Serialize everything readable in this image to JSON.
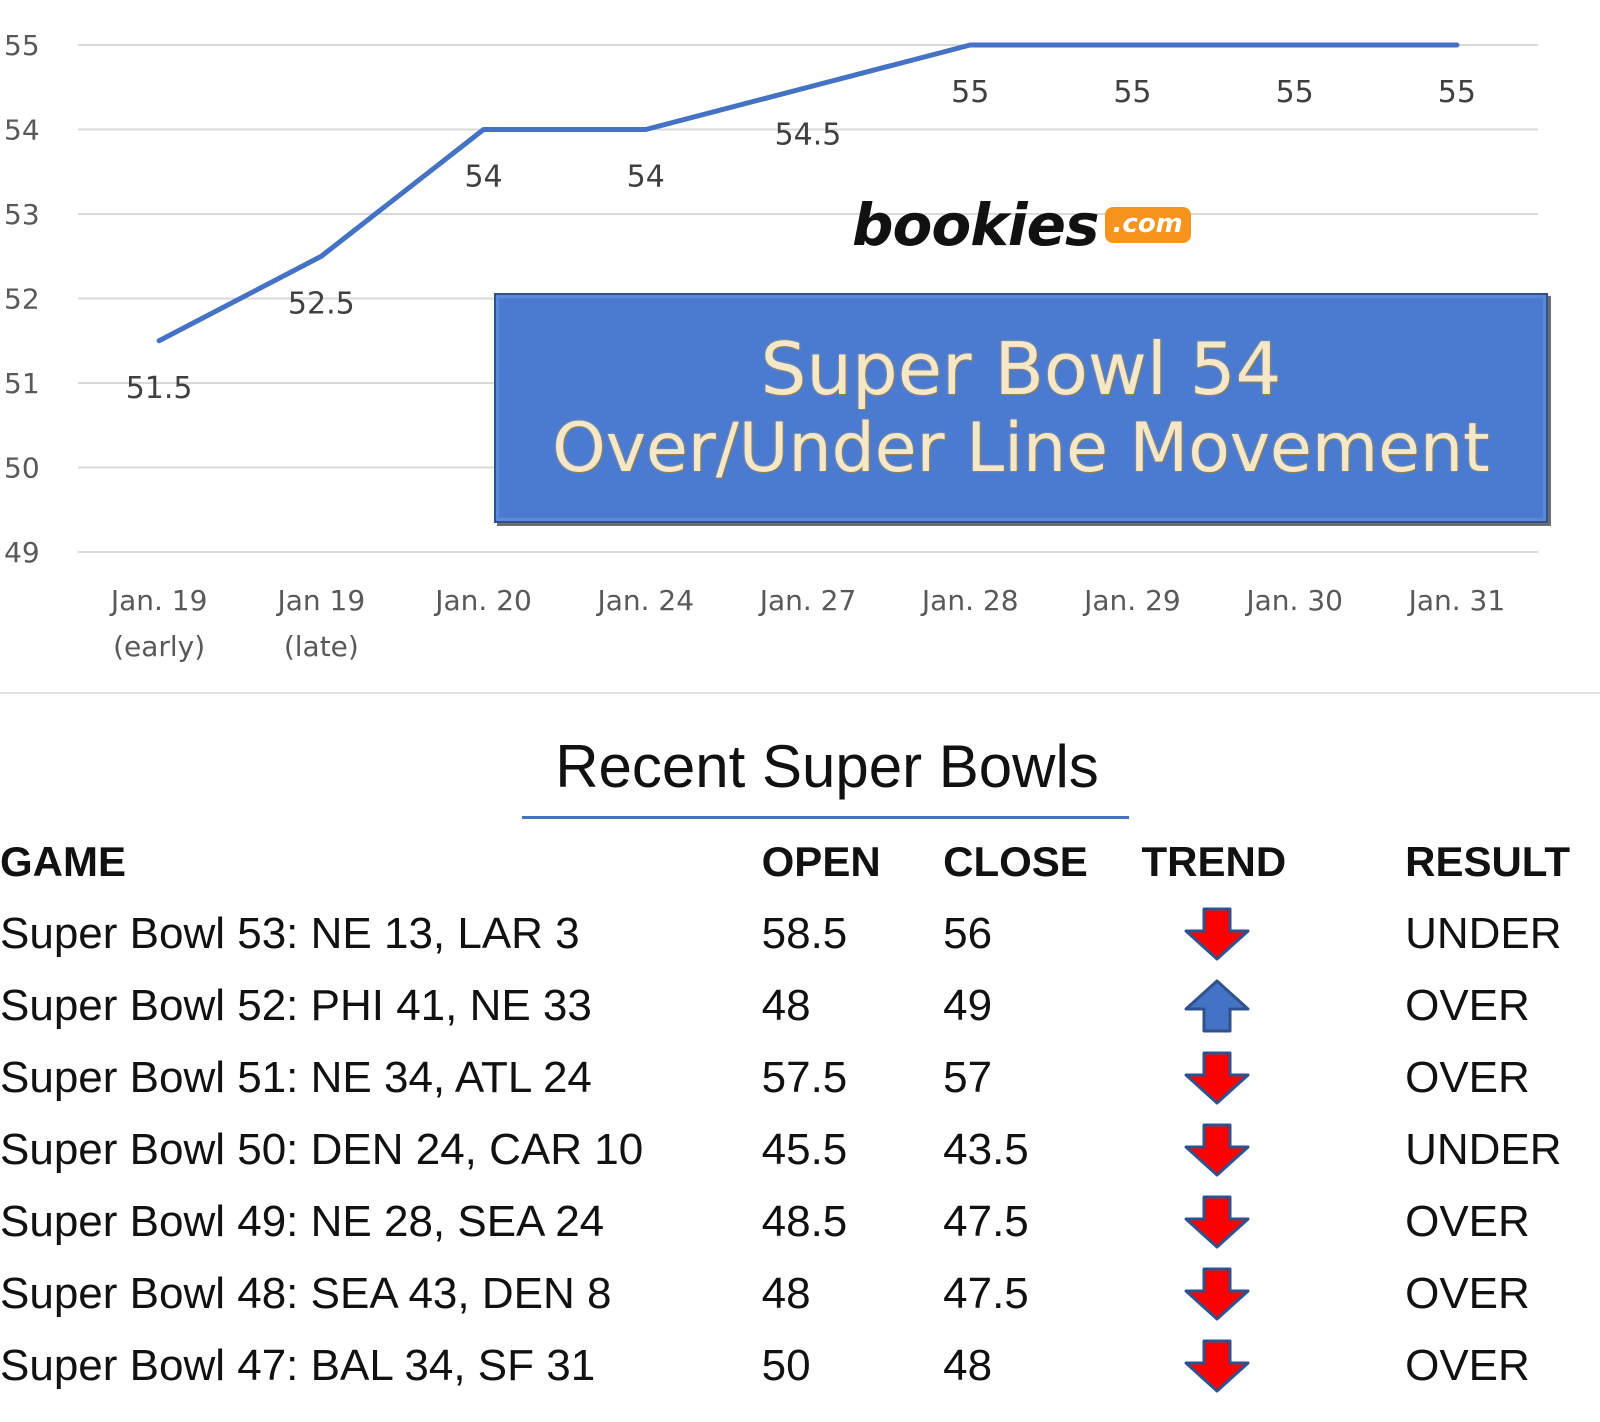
{
  "chart_data": {
    "type": "line",
    "categories": [
      "Jan. 19\n(early)",
      "Jan 19\n(late)",
      "Jan. 20",
      "Jan. 24",
      "Jan. 27",
      "Jan. 28",
      "Jan. 29",
      "Jan. 30",
      "Jan. 31"
    ],
    "series": [
      {
        "values": [
          51.5,
          52.5,
          54,
          54,
          54.5,
          55,
          55,
          55,
          55
        ],
        "color": "#4472c4"
      }
    ],
    "data_labels": [
      "51.5",
      "52.5",
      "54",
      "54",
      "54.5",
      "55",
      "55",
      "55",
      "55"
    ],
    "ylim": [
      49,
      55
    ],
    "yticks": [
      49,
      50,
      51,
      52,
      53,
      54,
      55
    ],
    "grid": true,
    "title": "Super Bowl 54\nOver/Under Line Movement",
    "xlabel": "",
    "ylabel": ""
  },
  "brand": {
    "name": "bookies",
    "tld": ".com",
    "tld_color": "#f7941d"
  },
  "overlay_title": {
    "line1": "Super Bowl 54",
    "line2": "Over/Under Line Movement",
    "background": "#4a7bd1"
  },
  "table": {
    "title": "Recent Super Bowls",
    "headers": {
      "game": "GAME",
      "open": "OPEN",
      "close": "CLOSE",
      "trend": "TREND",
      "result": "RESULT"
    },
    "rows": [
      {
        "game": "Super Bowl 53: NE 13, LAR 3",
        "open": "58.5",
        "close": "56",
        "trend": "down-arrow-icon",
        "result": "UNDER"
      },
      {
        "game": "Super Bowl 52: PHI 41, NE 33",
        "open": "48",
        "close": "49",
        "trend": "up-arrow-icon",
        "result": "OVER"
      },
      {
        "game": "Super Bowl 51: NE 34, ATL 24",
        "open": "57.5",
        "close": "57",
        "trend": "down-arrow-icon",
        "result": "OVER"
      },
      {
        "game": "Super Bowl 50: DEN 24, CAR 10",
        "open": "45.5",
        "close": "43.5",
        "trend": "down-arrow-icon",
        "result": "UNDER"
      },
      {
        "game": "Super Bowl 49: NE 28, SEA 24",
        "open": "48.5",
        "close": "47.5",
        "trend": "down-arrow-icon",
        "result": "OVER"
      },
      {
        "game": "Super Bowl 48: SEA 43, DEN 8",
        "open": "48",
        "close": "47.5",
        "trend": "down-arrow-icon",
        "result": "OVER"
      },
      {
        "game": "Super Bowl 47: BAL 34, SF 31",
        "open": "50",
        "close": "48",
        "trend": "down-arrow-icon",
        "result": "OVER"
      }
    ],
    "trend_colors": {
      "down": "#ff0000",
      "up": "#4472c4"
    }
  }
}
